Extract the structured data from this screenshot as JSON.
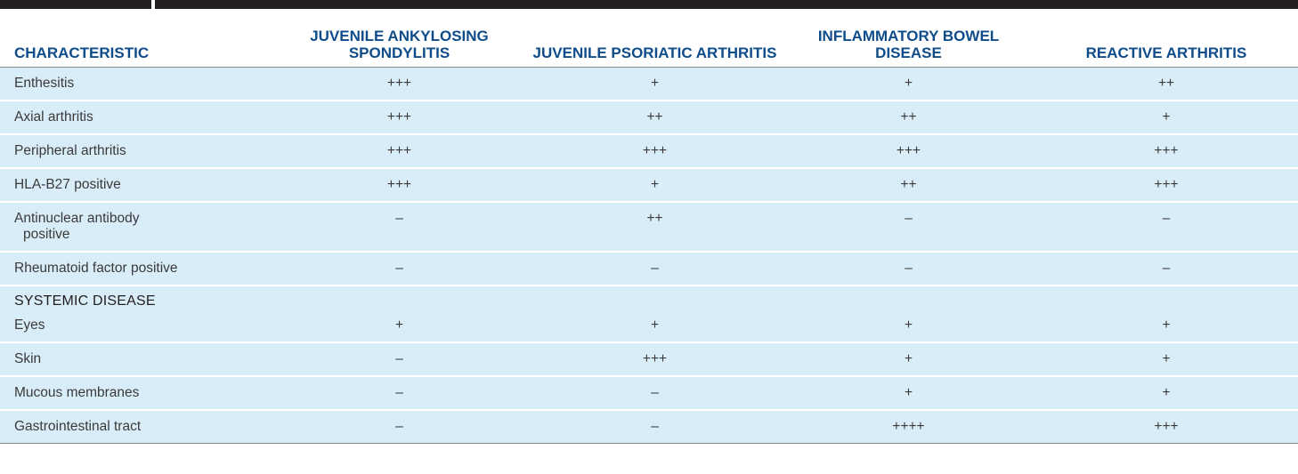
{
  "table": {
    "headers": [
      "CHARACTERISTIC",
      "JUVENILE ANKYLOSING SPONDYLITIS",
      "JUVENILE PSORIATIC ARTHRITIS",
      "INFLAMMATORY BOWEL DISEASE",
      "REACTIVE ARTHRITIS"
    ],
    "rows": [
      {
        "label": "Enthesitis",
        "values": [
          "+++",
          "+",
          "+",
          "++"
        ]
      },
      {
        "label": "Axial arthritis",
        "values": [
          "+++",
          "++",
          "++",
          "+"
        ]
      },
      {
        "label": "Peripheral arthritis",
        "values": [
          "+++",
          "+++",
          "+++",
          "+++"
        ]
      },
      {
        "label": "HLA-B27 positive",
        "values": [
          "+++",
          "+",
          "++",
          "+++"
        ]
      },
      {
        "label_line1": "Antinuclear antibody",
        "label_line2": "positive",
        "values": [
          "–",
          "++",
          "–",
          "–"
        ]
      },
      {
        "label": "Rheumatoid factor positive",
        "values": [
          "–",
          "–",
          "–",
          "–"
        ]
      }
    ],
    "section_title": "SYSTEMIC DISEASE",
    "systemic_rows": [
      {
        "label": "Eyes",
        "values": [
          "+",
          "+",
          "+",
          "+"
        ]
      },
      {
        "label": "Skin",
        "values": [
          "–",
          "+++",
          "+",
          "+"
        ]
      },
      {
        "label": "Mucous membranes",
        "values": [
          "–",
          "–",
          "+",
          "+"
        ]
      },
      {
        "label": "Gastrointestinal tract",
        "values": [
          "–",
          "–",
          "++++",
          "+++"
        ]
      }
    ]
  },
  "colors": {
    "header_text": "#0f4c8a",
    "row_background": "#d9edf8",
    "top_bar": "#231f20"
  }
}
